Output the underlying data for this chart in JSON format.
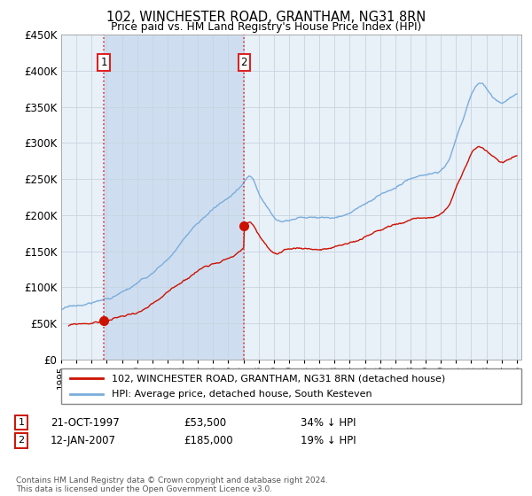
{
  "title": "102, WINCHESTER ROAD, GRANTHAM, NG31 8RN",
  "subtitle": "Price paid vs. HM Land Registry's House Price Index (HPI)",
  "legend_line1": "102, WINCHESTER ROAD, GRANTHAM, NG31 8RN (detached house)",
  "legend_line2": "HPI: Average price, detached house, South Kesteven",
  "footnote": "Contains HM Land Registry data © Crown copyright and database right 2024.\nThis data is licensed under the Open Government Licence v3.0.",
  "purchase1": {
    "date": "21-OCT-1997",
    "price": 53500,
    "label": "34% ↓ HPI"
  },
  "purchase2": {
    "date": "12-JAN-2007",
    "price": 185000,
    "label": "19% ↓ HPI"
  },
  "purchase1_x": 1997.8,
  "purchase2_x": 2007.04,
  "hpi_color": "#7aaddc",
  "price_color": "#cc1100",
  "vline_color": "#dd2222",
  "plot_bg_color": "#e8f0f8",
  "shade_color": "#ccddf0",
  "ylim": [
    0,
    450000
  ],
  "ytick_step": 50000,
  "xlim_start": 1995.0,
  "xlim_end": 2025.3
}
